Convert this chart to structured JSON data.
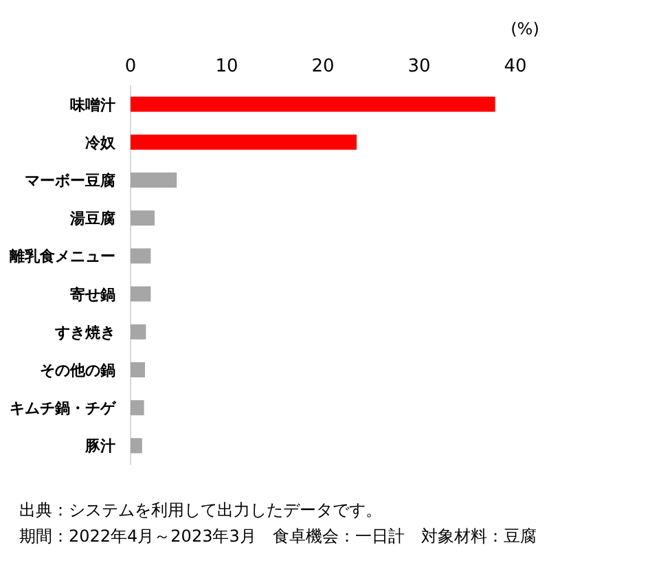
{
  "chart_data": {
    "type": "bar",
    "orientation": "horizontal",
    "xlabel": "(%)",
    "categories": [
      "味噌汁",
      "冷奴",
      "マーボー豆腐",
      "湯豆腐",
      "離乳食メニュー",
      "寄せ鍋",
      "すき焼き",
      "その他の鍋",
      "キムチ鍋・チゲ",
      "豚汁"
    ],
    "values": [
      37.9,
      23.5,
      4.8,
      2.5,
      2.1,
      2.1,
      1.6,
      1.5,
      1.4,
      1.2
    ],
    "colors": [
      "#ff0000",
      "#ff0000",
      "#a6a6a6",
      "#a6a6a6",
      "#a6a6a6",
      "#a6a6a6",
      "#a6a6a6",
      "#a6a6a6",
      "#a6a6a6",
      "#a6a6a6"
    ],
    "xlim": [
      0,
      40
    ],
    "xticks": [
      0,
      10,
      20,
      30,
      40
    ],
    "grid": false,
    "annotations": [
      "出典：システムを利用して出力したデータです。",
      "期間：2022年4月～2023年3月　食卓機会：一日計　対象材料：豆腐"
    ]
  }
}
